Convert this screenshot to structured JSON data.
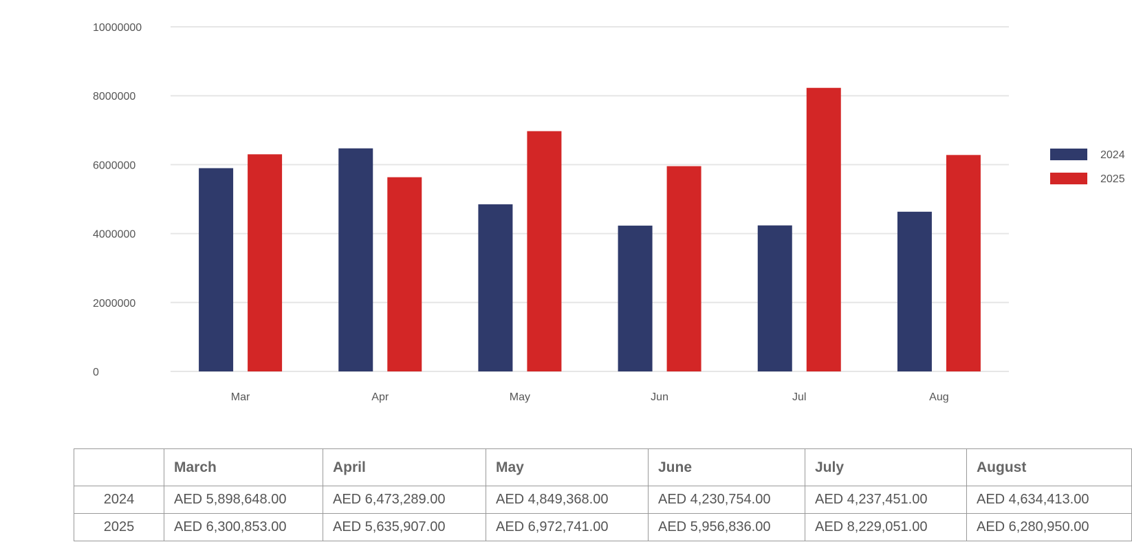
{
  "chart_data": {
    "type": "bar",
    "categories": [
      "Mar",
      "Apr",
      "May",
      "Jun",
      "Jul",
      "Aug"
    ],
    "series": [
      {
        "name": "2024",
        "color": "#2f3a6b",
        "values": [
          5898648,
          6473289,
          4849368,
          4230754,
          4237451,
          4634413
        ]
      },
      {
        "name": "2025",
        "color": "#d32626",
        "values": [
          6300853,
          5635907,
          6972741,
          5956836,
          8229051,
          6280950
        ]
      }
    ],
    "yticks": [
      "0",
      "2000000",
      "4000000",
      "6000000",
      "8000000",
      "10000000"
    ],
    "ylim": [
      0,
      10000000
    ],
    "grid": true,
    "legend_position": "right"
  },
  "table": {
    "headers": [
      "",
      "March",
      "April",
      "May",
      "June",
      "July",
      "August"
    ],
    "rows": [
      {
        "year": "2024",
        "cells": [
          "AED 5,898,648.00",
          "AED 6,473,289.00",
          "AED 4,849,368.00",
          "AED 4,230,754.00",
          "AED 4,237,451.00",
          "AED 4,634,413.00"
        ]
      },
      {
        "year": "2025",
        "cells": [
          "AED 6,300,853.00",
          "AED 5,635,907.00",
          "AED 6,972,741.00",
          "AED 5,956,836.00",
          "AED 8,229,051.00",
          "AED 6,280,950.00"
        ]
      }
    ]
  }
}
